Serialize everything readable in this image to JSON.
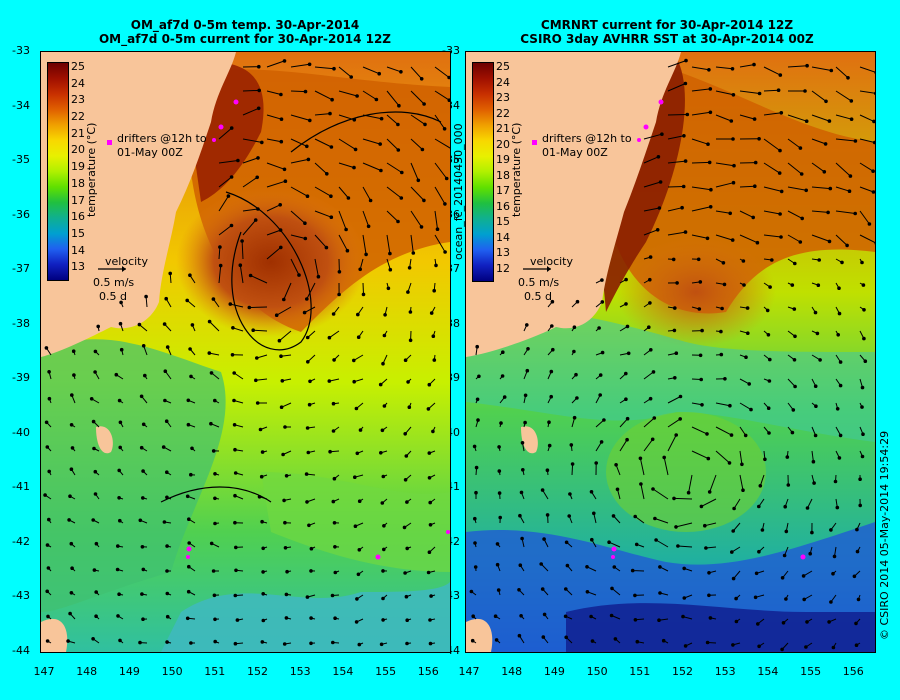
{
  "left_panel": {
    "title_line1": "OM_af7d 0-5m temp. 30-Apr-2014",
    "title_line2": "OM_af7d 0-5m current for 30-Apr-2014 12Z",
    "colorbar_ticks": [
      "25",
      "24",
      "23",
      "22",
      "21",
      "20",
      "19",
      "18",
      "17",
      "16",
      "15",
      "14",
      "13"
    ],
    "colorbar_label": "temperature (°C)",
    "drifters_line1": "drifters @12h to",
    "drifters_line2": "01-May 00Z",
    "velocity_label": "velocity",
    "velocity_value": "0.5 m/s",
    "velocity_time": "0.5 d"
  },
  "right_panel": {
    "title_line1": "CMRNRT current for 30-Apr-2014 12Z",
    "title_line2": "CSIRO 3day AVHRR SST at 30-Apr-2014 00Z",
    "colorbar_ticks": [
      "25",
      "24",
      "23",
      "22",
      "21",
      "20",
      "19",
      "18",
      "17",
      "16",
      "15",
      "14",
      "13",
      "12"
    ],
    "colorbar_label": "temperature (°C)",
    "drifters_line1": "drifters @12h to",
    "drifters_line2": "01-May 00Z",
    "velocity_label": "velocity",
    "velocity_value": "0.5 m/s",
    "velocity_time": "0.5 d"
  },
  "y_ticks": [
    "-33",
    "-34",
    "-35",
    "-36",
    "-37",
    "-38",
    "-39",
    "-40",
    "-41",
    "-42",
    "-43",
    "-44"
  ],
  "x_ticks": [
    "147",
    "148",
    "149",
    "150",
    "151",
    "152",
    "153",
    "154",
    "155",
    "156"
  ],
  "side_label": "ocean_fc_20140430_000",
  "credit": "© CSIRO 2014  05-May-2014 19:54:29",
  "colors": {
    "background": "#00ffff",
    "land": "#f8c59a",
    "colorbar": [
      "#6d0000",
      "#a01000",
      "#c83000",
      "#e06000",
      "#f0a000",
      "#f8d800",
      "#e8f000",
      "#b0f000",
      "#60e000",
      "#20c040",
      "#10b090",
      "#00a0d0",
      "#2060f0",
      "#1020c0",
      "#000080"
    ]
  }
}
